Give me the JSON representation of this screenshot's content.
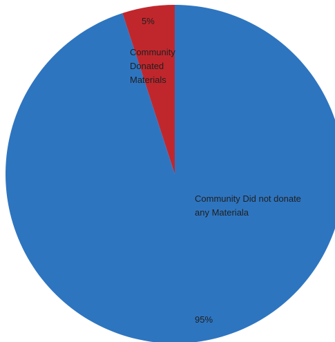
{
  "chart_data": {
    "type": "pie",
    "slices": [
      {
        "label_lines": [
          "Community",
          "Donated",
          "Materials"
        ],
        "value": 5,
        "percent_label": "5%",
        "color": "#c0272d"
      },
      {
        "label_lines": [
          "Community Did not donate",
          "any Materiala"
        ],
        "value": 95,
        "percent_label": "95%",
        "color": "#2e75c0"
      }
    ],
    "start_angle": "12 o'clock",
    "direction": "counter-clockwise from top for small slice"
  }
}
